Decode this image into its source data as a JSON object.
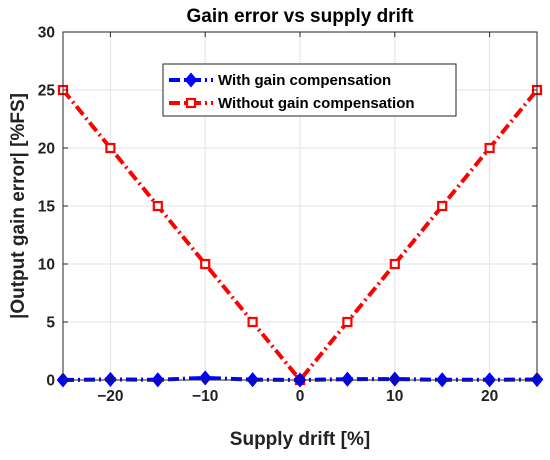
{
  "chart_data": {
    "type": "line",
    "title": "Gain error vs supply drift",
    "xlabel": "Supply drift [%]",
    "ylabel": "|Output gain error| [%FS]",
    "xlim": [
      -25,
      25
    ],
    "ylim": [
      0,
      30
    ],
    "xticks": [
      -20,
      -10,
      0,
      10,
      20
    ],
    "xtick_labels": [
      "−20",
      "−10",
      "0",
      "10",
      "20"
    ],
    "yticks": [
      0,
      5,
      10,
      15,
      20,
      25,
      30
    ],
    "ytick_labels": [
      "0",
      "5",
      "10",
      "15",
      "20",
      "25",
      "30"
    ],
    "grid": true,
    "legend_position": "top-center",
    "x": [
      -25,
      -20,
      -15,
      -10,
      -5,
      0,
      5,
      10,
      15,
      20,
      25
    ],
    "series": [
      {
        "name": "With gain compensation",
        "values": [
          0.0,
          0.05,
          0.02,
          0.18,
          0.03,
          0.0,
          0.07,
          0.08,
          0.02,
          0.02,
          0.04
        ],
        "color": "#0000ff",
        "marker": "diamond",
        "line_style": "dash-dot"
      },
      {
        "name": "Without gain compensation",
        "values": [
          25,
          20,
          15,
          10,
          5,
          0,
          5,
          10,
          15,
          20,
          25
        ],
        "color": "#ff0000",
        "marker": "square",
        "line_style": "dash-dot"
      }
    ]
  }
}
